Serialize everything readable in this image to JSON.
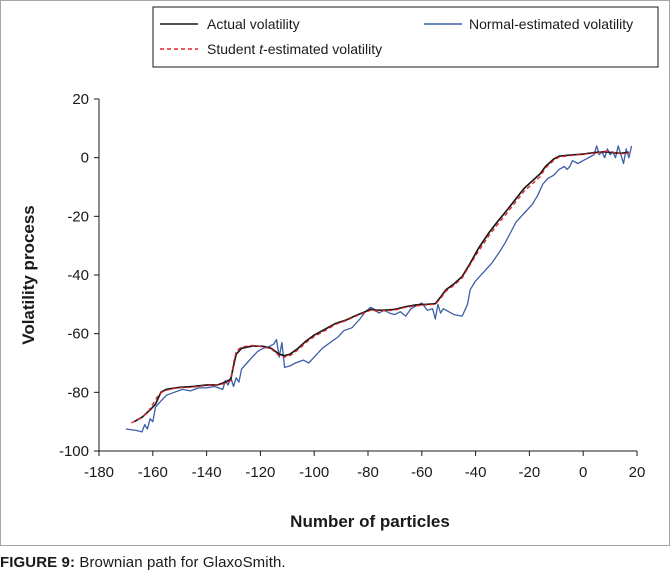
{
  "chart_data": {
    "type": "line",
    "xlabel": "Number of particles",
    "ylabel": "Volatility process",
    "xlim": [
      -180,
      20
    ],
    "ylim": [
      -100,
      20
    ],
    "x_ticks": [
      -180,
      -160,
      -140,
      -120,
      -100,
      -80,
      -60,
      -40,
      -20,
      0,
      20
    ],
    "y_ticks": [
      20,
      0,
      -20,
      -40,
      -60,
      -80,
      -100
    ],
    "grid": false,
    "legend_position": "top",
    "legend": [
      {
        "name_prefix": "Actual volatility",
        "name_italic": "",
        "name_suffix": ""
      },
      {
        "name_prefix": "Normal-estimated volatility",
        "name_italic": "",
        "name_suffix": ""
      },
      {
        "name_prefix": "Student ",
        "name_italic": "t",
        "name_suffix": "-estimated volatility"
      }
    ],
    "series": [
      {
        "name": "Actual volatility",
        "color": "#1a1a1a",
        "dash": "none",
        "points": [
          [
            -167,
            -90
          ],
          [
            -164,
            -88.5
          ],
          [
            -161,
            -86
          ],
          [
            -159,
            -84
          ],
          [
            -157,
            -80
          ],
          [
            -155,
            -79
          ],
          [
            -150,
            -78.3
          ],
          [
            -145,
            -78
          ],
          [
            -140,
            -77.5
          ],
          [
            -136,
            -77.5
          ],
          [
            -133,
            -76.5
          ],
          [
            -131,
            -75.5
          ],
          [
            -130,
            -71
          ],
          [
            -129,
            -67
          ],
          [
            -127,
            -65
          ],
          [
            -123,
            -64.2
          ],
          [
            -119,
            -64.3
          ],
          [
            -116,
            -65
          ],
          [
            -113,
            -67
          ],
          [
            -111,
            -67.5
          ],
          [
            -109,
            -67
          ],
          [
            -106,
            -65
          ],
          [
            -103,
            -62.5
          ],
          [
            -100,
            -60.5
          ],
          [
            -96,
            -58.5
          ],
          [
            -92,
            -56.5
          ],
          [
            -88,
            -55.3
          ],
          [
            -85,
            -54
          ],
          [
            -81,
            -52.5
          ],
          [
            -79,
            -51.7
          ],
          [
            -77,
            -52
          ],
          [
            -74,
            -52
          ],
          [
            -70,
            -51.7
          ],
          [
            -66,
            -50.8
          ],
          [
            -62,
            -50.2
          ],
          [
            -58,
            -50
          ],
          [
            -55,
            -49.8
          ],
          [
            -53,
            -47.5
          ],
          [
            -51,
            -45
          ],
          [
            -48,
            -43
          ],
          [
            -45,
            -40.5
          ],
          [
            -42,
            -36
          ],
          [
            -39,
            -31
          ],
          [
            -35,
            -25.5
          ],
          [
            -32,
            -22
          ],
          [
            -28,
            -17.5
          ],
          [
            -25,
            -14
          ],
          [
            -22,
            -10.5
          ],
          [
            -19,
            -8
          ],
          [
            -16,
            -5.5
          ],
          [
            -14,
            -3
          ],
          [
            -11,
            -0.5
          ],
          [
            -9,
            0.5
          ],
          [
            -6,
            0.8
          ],
          [
            -3,
            1
          ],
          [
            0,
            1.2
          ],
          [
            2,
            1.5
          ],
          [
            5,
            1.8
          ],
          [
            8,
            2
          ],
          [
            11,
            1.7
          ],
          [
            14,
            1.5
          ],
          [
            17,
            1.8
          ]
        ]
      },
      {
        "name": "Normal-estimated volatility",
        "color": "#3b5faa",
        "dash": "none",
        "points": [
          [
            -170,
            -92.5
          ],
          [
            -166,
            -93
          ],
          [
            -164,
            -93.5
          ],
          [
            -163,
            -91
          ],
          [
            -162,
            -92.5
          ],
          [
            -161,
            -89
          ],
          [
            -160,
            -90
          ],
          [
            -159,
            -85
          ],
          [
            -157,
            -83
          ],
          [
            -155,
            -81
          ],
          [
            -152,
            -80
          ],
          [
            -149,
            -79
          ],
          [
            -146,
            -79.5
          ],
          [
            -143,
            -78.5
          ],
          [
            -140,
            -78.5
          ],
          [
            -137,
            -78
          ],
          [
            -134,
            -79
          ],
          [
            -133,
            -76
          ],
          [
            -132,
            -77.5
          ],
          [
            -131,
            -75
          ],
          [
            -130,
            -78
          ],
          [
            -129,
            -75
          ],
          [
            -128,
            -76.5
          ],
          [
            -127,
            -72
          ],
          [
            -125,
            -70
          ],
          [
            -123,
            -68
          ],
          [
            -121,
            -66
          ],
          [
            -119,
            -65
          ],
          [
            -117,
            -64.5
          ],
          [
            -115,
            -63.5
          ],
          [
            -114,
            -62
          ],
          [
            -113,
            -68
          ],
          [
            -112,
            -63
          ],
          [
            -111,
            -71.5
          ],
          [
            -109,
            -71
          ],
          [
            -107,
            -70
          ],
          [
            -104,
            -69
          ],
          [
            -102,
            -70
          ],
          [
            -100,
            -68
          ],
          [
            -97,
            -65
          ],
          [
            -94,
            -63
          ],
          [
            -91,
            -61
          ],
          [
            -89,
            -59
          ],
          [
            -86,
            -58
          ],
          [
            -83,
            -55
          ],
          [
            -81,
            -52.5
          ],
          [
            -79,
            -51
          ],
          [
            -78,
            -51.5
          ],
          [
            -76,
            -53
          ],
          [
            -74,
            -52
          ],
          [
            -72,
            -53
          ],
          [
            -70,
            -53.5
          ],
          [
            -68,
            -52.5
          ],
          [
            -66,
            -54
          ],
          [
            -64,
            -51.5
          ],
          [
            -62,
            -50.5
          ],
          [
            -60,
            -49.5
          ],
          [
            -58,
            -52
          ],
          [
            -56,
            -51.5
          ],
          [
            -55,
            -55
          ],
          [
            -54,
            -50
          ],
          [
            -53,
            -53
          ],
          [
            -52,
            -51.5
          ],
          [
            -50,
            -52.5
          ],
          [
            -48,
            -53.5
          ],
          [
            -45,
            -54
          ],
          [
            -43,
            -50
          ],
          [
            -42,
            -45
          ],
          [
            -40,
            -42
          ],
          [
            -37,
            -39
          ],
          [
            -34,
            -36
          ],
          [
            -31,
            -32
          ],
          [
            -29,
            -29
          ],
          [
            -27,
            -25.5
          ],
          [
            -25,
            -22
          ],
          [
            -23,
            -20
          ],
          [
            -21,
            -18
          ],
          [
            -19,
            -16
          ],
          [
            -17,
            -13
          ],
          [
            -15,
            -9
          ],
          [
            -13,
            -7
          ],
          [
            -11,
            -6
          ],
          [
            -9,
            -4
          ],
          [
            -7,
            -3
          ],
          [
            -6,
            -4
          ],
          [
            -5,
            -3
          ],
          [
            -4,
            -1
          ],
          [
            -2,
            -2
          ],
          [
            0,
            -1
          ],
          [
            2,
            0
          ],
          [
            4,
            1
          ],
          [
            5,
            4
          ],
          [
            6,
            1
          ],
          [
            7,
            2
          ],
          [
            8,
            0
          ],
          [
            9,
            3
          ],
          [
            10,
            1
          ],
          [
            11,
            2
          ],
          [
            12,
            0
          ],
          [
            13,
            4
          ],
          [
            14,
            1
          ],
          [
            15,
            -2
          ],
          [
            16,
            3
          ],
          [
            17,
            0
          ],
          [
            18,
            4
          ]
        ]
      },
      {
        "name": "Student t-estimated volatility",
        "color": "#e8202a",
        "dash": "4,3",
        "points": [
          [
            -168,
            -90.5
          ],
          [
            -165,
            -89
          ],
          [
            -162,
            -87
          ],
          [
            -160,
            -84
          ],
          [
            -158,
            -81
          ],
          [
            -156,
            -79.5
          ],
          [
            -151,
            -78.5
          ],
          [
            -146,
            -78.3
          ],
          [
            -141,
            -77.8
          ],
          [
            -136,
            -77.5
          ],
          [
            -133,
            -77
          ],
          [
            -131,
            -76
          ],
          [
            -130,
            -70
          ],
          [
            -129,
            -66
          ],
          [
            -127,
            -64.5
          ],
          [
            -123,
            -64
          ],
          [
            -119,
            -64.5
          ],
          [
            -116,
            -65.2
          ],
          [
            -113,
            -67.5
          ],
          [
            -111,
            -68
          ],
          [
            -109,
            -67.5
          ],
          [
            -106,
            -65.5
          ],
          [
            -103,
            -63
          ],
          [
            -100,
            -61
          ],
          [
            -96,
            -59
          ],
          [
            -92,
            -56.8
          ],
          [
            -88,
            -55.5
          ],
          [
            -85,
            -54.2
          ],
          [
            -81,
            -52.8
          ],
          [
            -79,
            -52
          ],
          [
            -77,
            -52.3
          ],
          [
            -74,
            -52.2
          ],
          [
            -70,
            -52
          ],
          [
            -66,
            -51
          ],
          [
            -62,
            -50.5
          ],
          [
            -58,
            -50.2
          ],
          [
            -55,
            -50
          ],
          [
            -53,
            -48
          ],
          [
            -51,
            -45.5
          ],
          [
            -48,
            -43.5
          ],
          [
            -45,
            -41
          ],
          [
            -42,
            -36.5
          ],
          [
            -39,
            -32
          ],
          [
            -35,
            -26.5
          ],
          [
            -32,
            -23
          ],
          [
            -28,
            -18.5
          ],
          [
            -25,
            -15
          ],
          [
            -22,
            -11.5
          ],
          [
            -19,
            -9
          ],
          [
            -16,
            -6.5
          ],
          [
            -14,
            -3.5
          ],
          [
            -11,
            -1
          ],
          [
            -9,
            0.2
          ],
          [
            -6,
            0.6
          ],
          [
            -3,
            0.9
          ],
          [
            0,
            1.1
          ],
          [
            2,
            1.4
          ],
          [
            5,
            1.6
          ],
          [
            8,
            2.2
          ],
          [
            11,
            1.9
          ],
          [
            14,
            1.3
          ],
          [
            17,
            1.6
          ]
        ]
      }
    ]
  },
  "caption": {
    "label": "FIGURE 9:",
    "text": " Brownian path for GlaxoSmith."
  }
}
